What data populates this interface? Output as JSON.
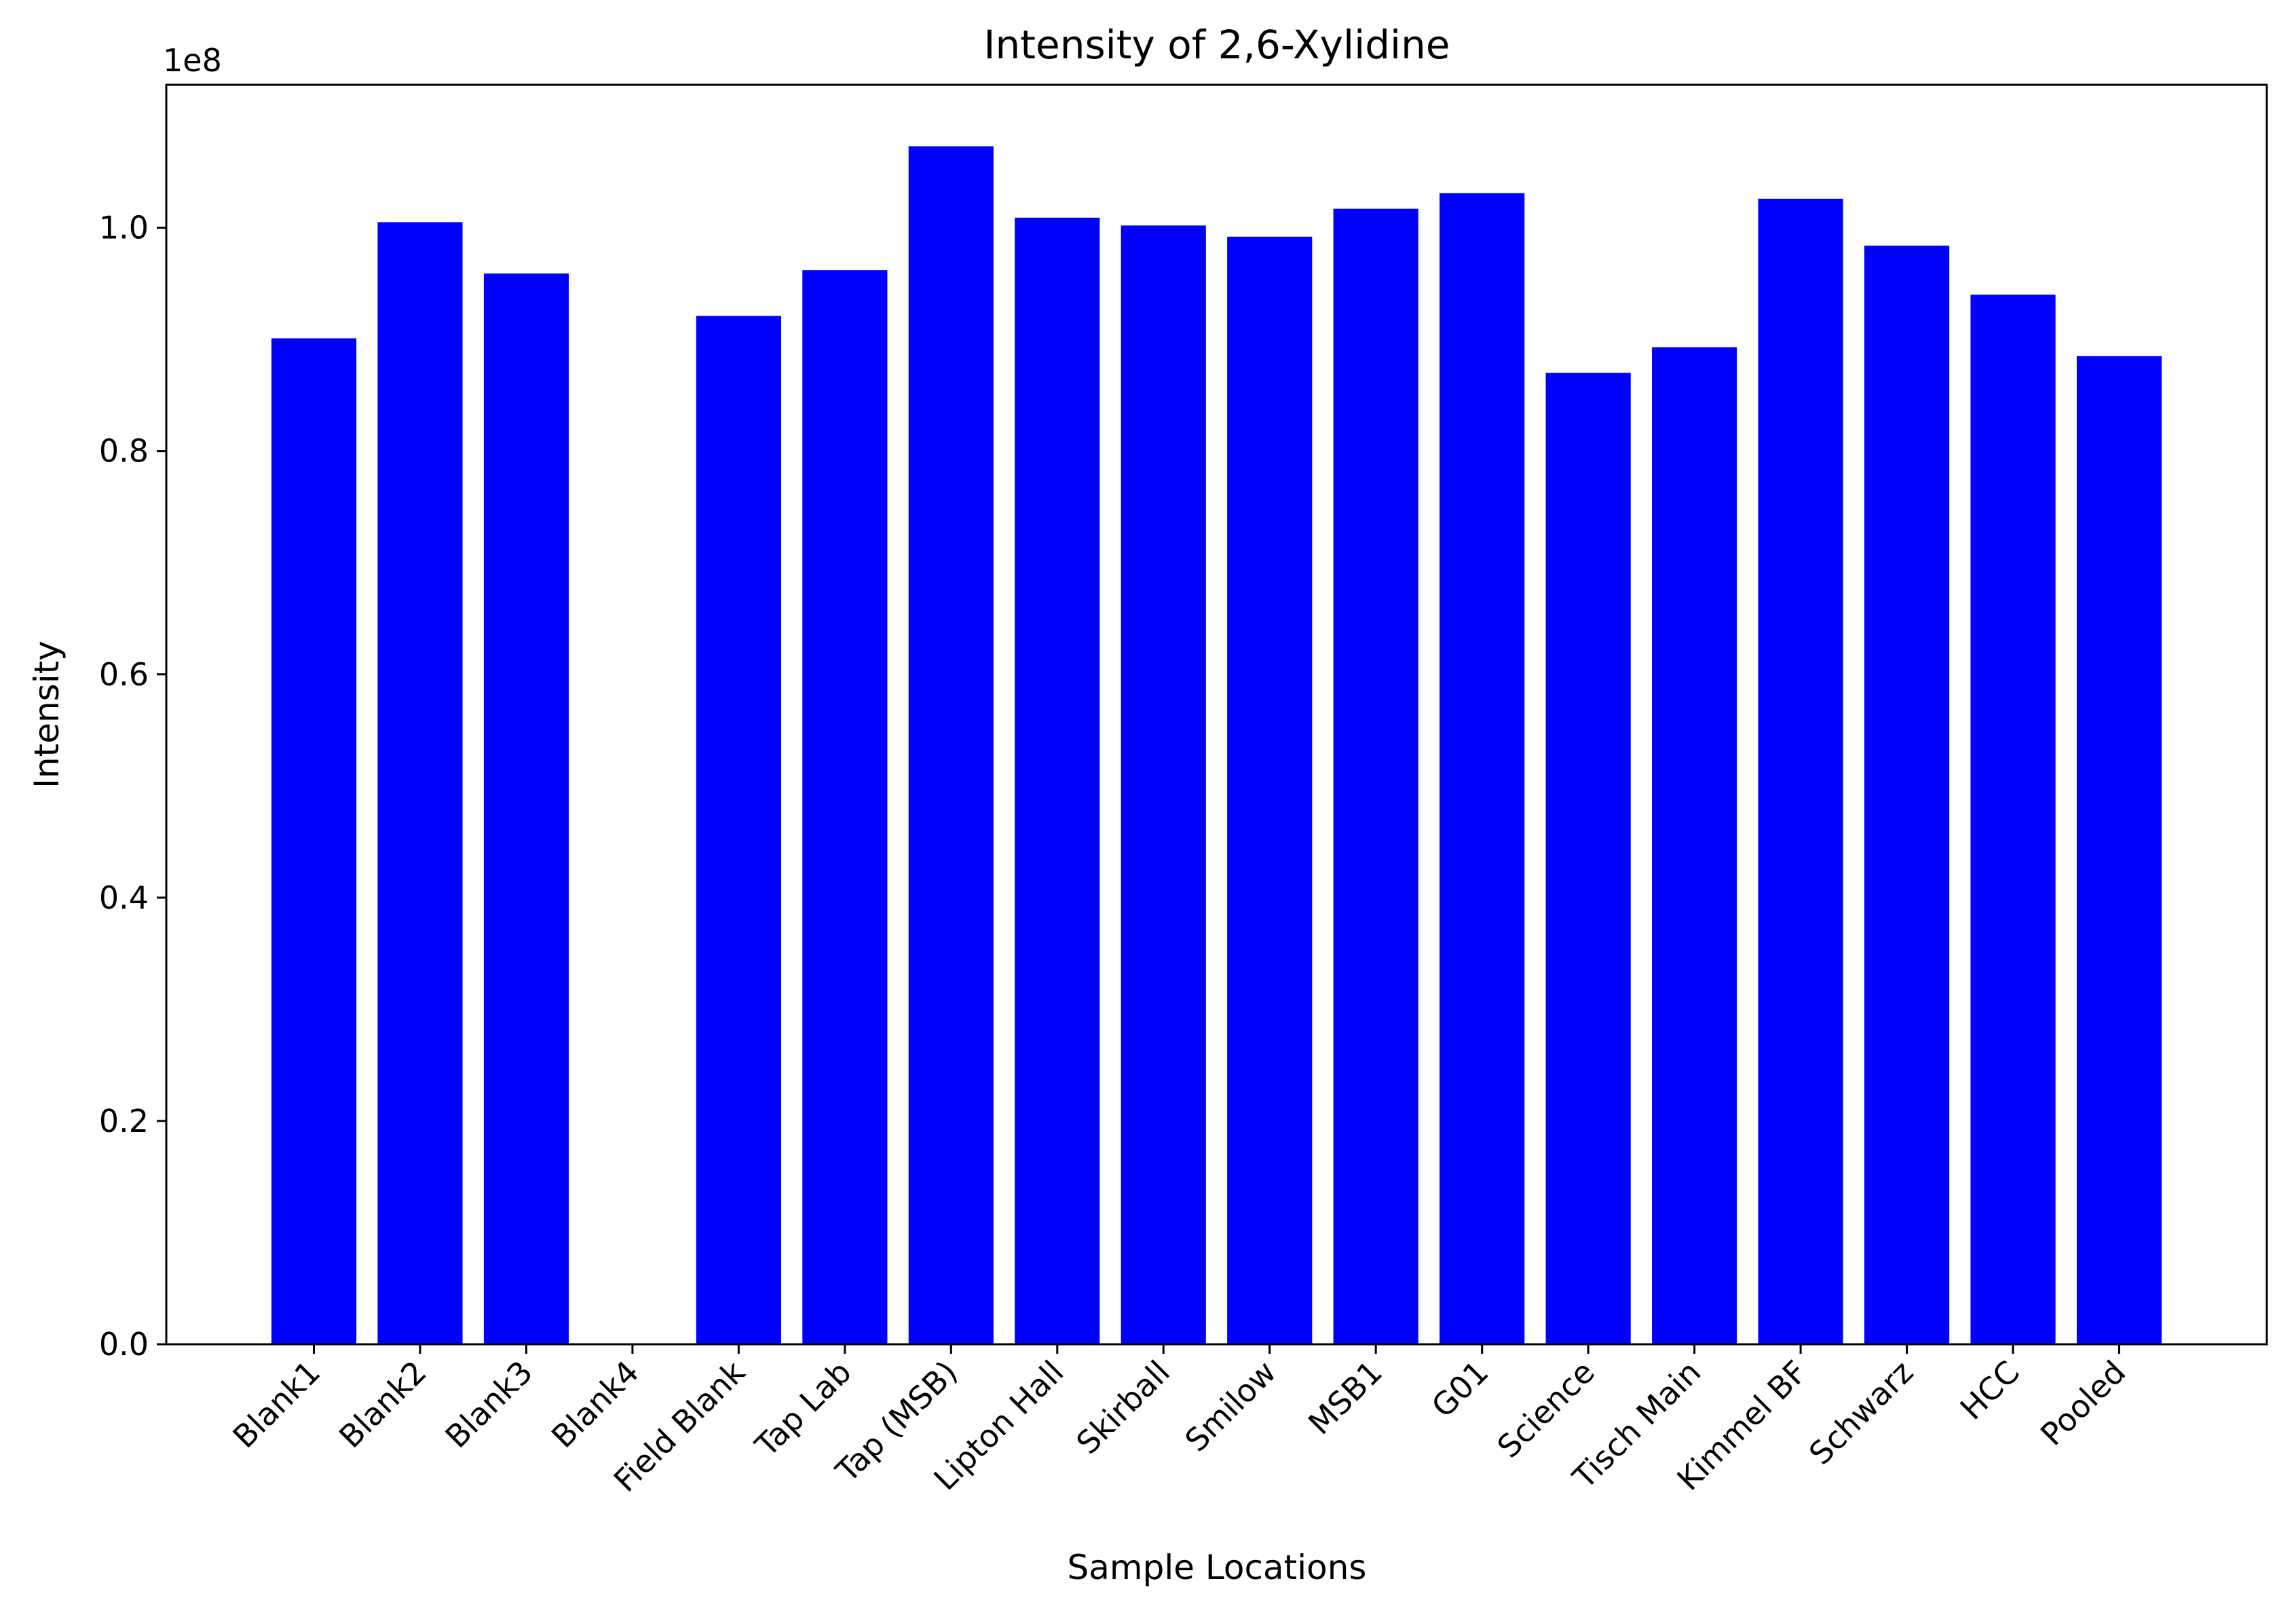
{
  "chart_data": {
    "type": "bar",
    "title": "Intensity of 2,6-Xylidine",
    "xlabel": "Sample Locations",
    "ylabel": "Intensity",
    "y_offset_label": "1e8",
    "y_scale": 100000000,
    "ylim": [
      0,
      112800000
    ],
    "yticks": [
      0,
      20000000,
      40000000,
      60000000,
      80000000,
      100000000
    ],
    "ytick_labels": [
      "0.0",
      "0.2",
      "0.4",
      "0.6",
      "0.8",
      "1.0"
    ],
    "grid": false,
    "legend": "none",
    "bar_color": "#0000ff",
    "categories": [
      "Blank1",
      "Blank2",
      "Blank3",
      "Blank4",
      "Field Blank",
      "Tap Lab",
      "Tap (MSB)",
      "Lipton Hall",
      "Skirball",
      "Smilow",
      "MSB1",
      "G01",
      "Science",
      "Tisch Main",
      "Kimmel BF",
      "Schwarz",
      "HCC",
      "Pooled"
    ],
    "values": [
      90100000,
      100500000,
      95900000,
      0,
      92100000,
      96200000,
      107300000,
      100900000,
      100200000,
      99200000,
      101700000,
      103100000,
      87000000,
      89300000,
      102600000,
      98400000,
      94000000,
      88500000
    ]
  }
}
